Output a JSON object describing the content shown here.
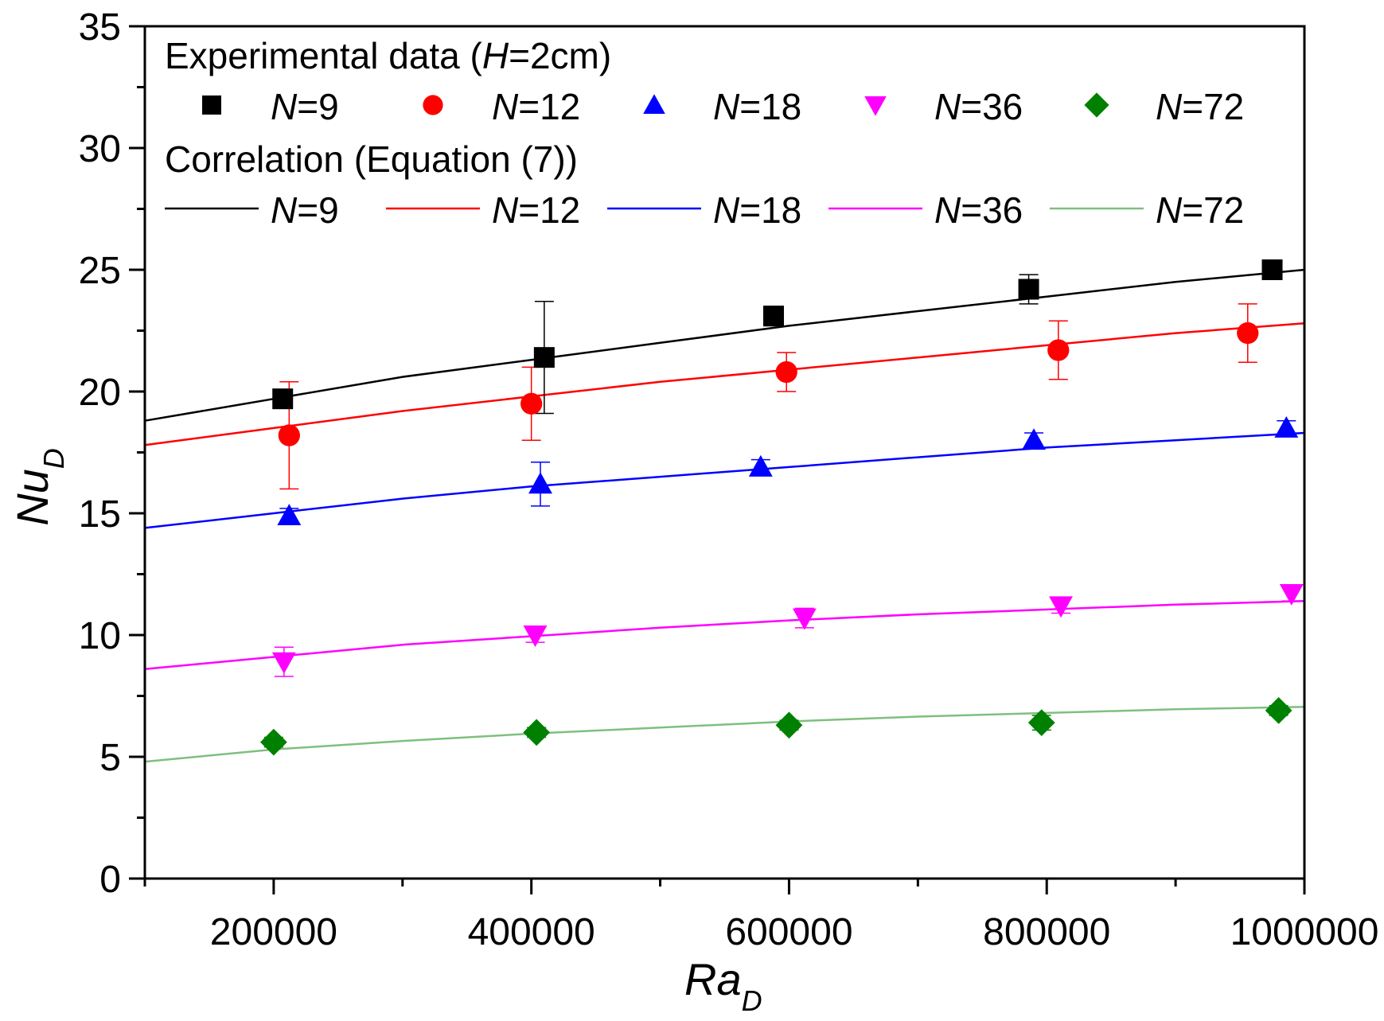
{
  "chart_data": {
    "type": "scatter",
    "title": "",
    "xlabel": "Ra",
    "xlabel_sub": "D",
    "ylabel": "Nu",
    "ylabel_sub": "D",
    "xlim": [
      100000,
      1000000
    ],
    "ylim": [
      0,
      35
    ],
    "x_ticks": [
      200000,
      400000,
      600000,
      800000,
      1000000
    ],
    "x_tick_labels": [
      "200000",
      "400000",
      "600000",
      "800000",
      "1000000"
    ],
    "y_ticks": [
      0,
      5,
      10,
      15,
      20,
      25,
      30,
      35
    ],
    "y_tick_labels": [
      "0",
      "5",
      "10",
      "15",
      "20",
      "25",
      "30",
      "35"
    ],
    "grid": false,
    "legend": {
      "placement": "top-left",
      "experimental_title_prefix": "Experimental data (",
      "experimental_title_var": "H",
      "experimental_title_suffix": "=2cm)",
      "correlation_title": "Correlation (Equation (7))"
    },
    "series": [
      {
        "name": "N=9",
        "label_var": "N",
        "label_val": "=9",
        "color": "#000000",
        "marker": "square",
        "experimental": [
          {
            "x": 207000,
            "y": 19.7,
            "err": 0.3
          },
          {
            "x": 410000,
            "y": 21.4,
            "err": 2.3
          },
          {
            "x": 588000,
            "y": 23.1,
            "err": 0.4
          },
          {
            "x": 786000,
            "y": 24.2,
            "err": 0.6
          },
          {
            "x": 975000,
            "y": 25.0,
            "err": 0.2
          }
        ],
        "correlation": {
          "x": [
            100000,
            200000,
            300000,
            400000,
            500000,
            600000,
            700000,
            800000,
            900000,
            1000000
          ],
          "y": [
            18.8,
            19.7,
            20.6,
            21.3,
            22.0,
            22.7,
            23.3,
            23.9,
            24.5,
            25.0
          ]
        }
      },
      {
        "name": "N=12",
        "label_var": "N",
        "label_val": "=12",
        "color": "#ff0000",
        "marker": "circle",
        "experimental": [
          {
            "x": 212000,
            "y": 18.2,
            "err": 2.2
          },
          {
            "x": 400000,
            "y": 19.5,
            "err": 1.5
          },
          {
            "x": 598000,
            "y": 20.8,
            "err": 0.8
          },
          {
            "x": 809000,
            "y": 21.7,
            "err": 1.2
          },
          {
            "x": 956000,
            "y": 22.4,
            "err": 1.2
          }
        ],
        "correlation": {
          "x": [
            100000,
            200000,
            300000,
            400000,
            500000,
            600000,
            700000,
            800000,
            900000,
            1000000
          ],
          "y": [
            17.8,
            18.5,
            19.2,
            19.8,
            20.4,
            20.9,
            21.4,
            21.9,
            22.4,
            22.8
          ]
        }
      },
      {
        "name": "N=18",
        "label_var": "N",
        "label_val": "=18",
        "color": "#0000ff",
        "marker": "triangle-up",
        "experimental": [
          {
            "x": 212000,
            "y": 14.9,
            "err": 0.3
          },
          {
            "x": 407000,
            "y": 16.2,
            "err": 0.9
          },
          {
            "x": 578000,
            "y": 16.9,
            "err": 0.3
          },
          {
            "x": 790000,
            "y": 18.0,
            "err": 0.3
          },
          {
            "x": 986000,
            "y": 18.5,
            "err": 0.3
          }
        ],
        "correlation": {
          "x": [
            100000,
            200000,
            300000,
            400000,
            500000,
            600000,
            700000,
            800000,
            900000,
            1000000
          ],
          "y": [
            14.4,
            15.0,
            15.6,
            16.1,
            16.5,
            16.9,
            17.3,
            17.7,
            18.0,
            18.3
          ]
        }
      },
      {
        "name": "N=36",
        "label_var": "N",
        "label_val": "=36",
        "color": "#ff00ff",
        "marker": "triangle-down",
        "experimental": [
          {
            "x": 208000,
            "y": 8.9,
            "err": 0.6
          },
          {
            "x": 403000,
            "y": 10.0,
            "err": 0.3
          },
          {
            "x": 612000,
            "y": 10.7,
            "err": 0.4
          },
          {
            "x": 811000,
            "y": 11.2,
            "err": 0.3
          },
          {
            "x": 990000,
            "y": 11.7,
            "err": 0.3
          }
        ],
        "correlation": {
          "x": [
            100000,
            200000,
            300000,
            400000,
            500000,
            600000,
            700000,
            800000,
            900000,
            1000000
          ],
          "y": [
            8.6,
            9.1,
            9.6,
            9.95,
            10.3,
            10.6,
            10.85,
            11.05,
            11.25,
            11.4
          ]
        }
      },
      {
        "name": "N=72",
        "label_var": "N",
        "label_val": "=72",
        "color": "#008000",
        "line_color": "#7fbf7f",
        "marker": "diamond",
        "experimental": [
          {
            "x": 200000,
            "y": 5.6,
            "err": 0.2
          },
          {
            "x": 404000,
            "y": 6.0,
            "err": 0.2
          },
          {
            "x": 600000,
            "y": 6.3,
            "err": 0.2
          },
          {
            "x": 796000,
            "y": 6.4,
            "err": 0.3
          },
          {
            "x": 980000,
            "y": 6.9,
            "err": 0.2
          }
        ],
        "correlation": {
          "x": [
            100000,
            200000,
            300000,
            400000,
            500000,
            600000,
            700000,
            800000,
            900000,
            1000000
          ],
          "y": [
            4.8,
            5.3,
            5.65,
            5.95,
            6.2,
            6.45,
            6.65,
            6.8,
            6.95,
            7.05
          ]
        }
      }
    ]
  }
}
